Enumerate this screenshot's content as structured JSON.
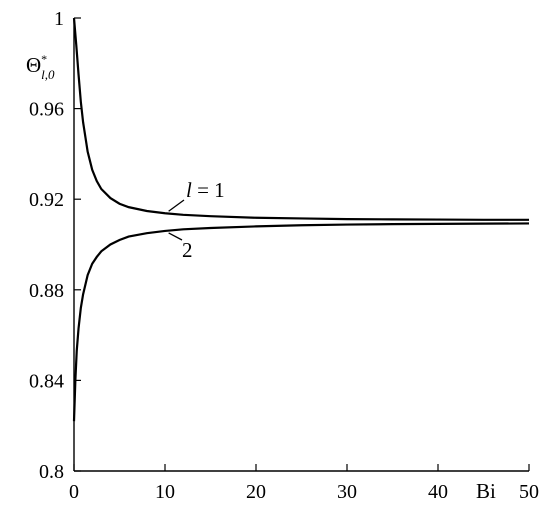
{
  "chart_data": {
    "type": "line",
    "title": "",
    "xlabel": "Bi",
    "ylabel": "Θ*l,0",
    "ylabel_parts": {
      "base": "Θ",
      "sup": "*",
      "sub": "l,0"
    },
    "xlim": [
      0,
      50
    ],
    "ylim": [
      0.8,
      1.0
    ],
    "x_ticks": [
      0,
      10,
      20,
      30,
      40,
      50
    ],
    "x_tick_labels": [
      "0",
      "10",
      "20",
      "30",
      "40",
      "50"
    ],
    "y_ticks": [
      0.8,
      0.84,
      0.88,
      0.92,
      0.96,
      1.0
    ],
    "y_tick_labels": [
      "0.8",
      "0.84",
      "0.88",
      "0.92",
      "0.96",
      "1"
    ],
    "grid": false,
    "series": [
      {
        "name": "l = 1",
        "label_italic": "l",
        "label_rest": " = 1",
        "x": [
          0,
          0.25,
          0.5,
          0.75,
          1,
          1.5,
          2,
          2.5,
          3,
          4,
          5,
          6,
          8,
          10,
          12,
          15,
          20,
          25,
          30,
          35,
          40,
          45,
          50
        ],
        "y": [
          1.0,
          0.988,
          0.975,
          0.963,
          0.954,
          0.941,
          0.933,
          0.928,
          0.9245,
          0.9205,
          0.918,
          0.9165,
          0.9148,
          0.9138,
          0.9131,
          0.9125,
          0.9118,
          0.9115,
          0.9112,
          0.9111,
          0.911,
          0.9109,
          0.9109
        ]
      },
      {
        "name": "2",
        "label_italic": "",
        "label_rest": "2",
        "x": [
          0,
          0.15,
          0.3,
          0.5,
          0.75,
          1,
          1.5,
          2,
          2.5,
          3,
          4,
          5,
          6,
          8,
          10,
          12,
          15,
          20,
          25,
          30,
          35,
          40,
          45,
          50
        ],
        "y": [
          0.822,
          0.84,
          0.853,
          0.863,
          0.872,
          0.878,
          0.8865,
          0.8915,
          0.8945,
          0.897,
          0.9,
          0.902,
          0.9035,
          0.905,
          0.906,
          0.9067,
          0.9073,
          0.908,
          0.9085,
          0.9088,
          0.909,
          0.9091,
          0.9092,
          0.9093
        ]
      }
    ]
  }
}
